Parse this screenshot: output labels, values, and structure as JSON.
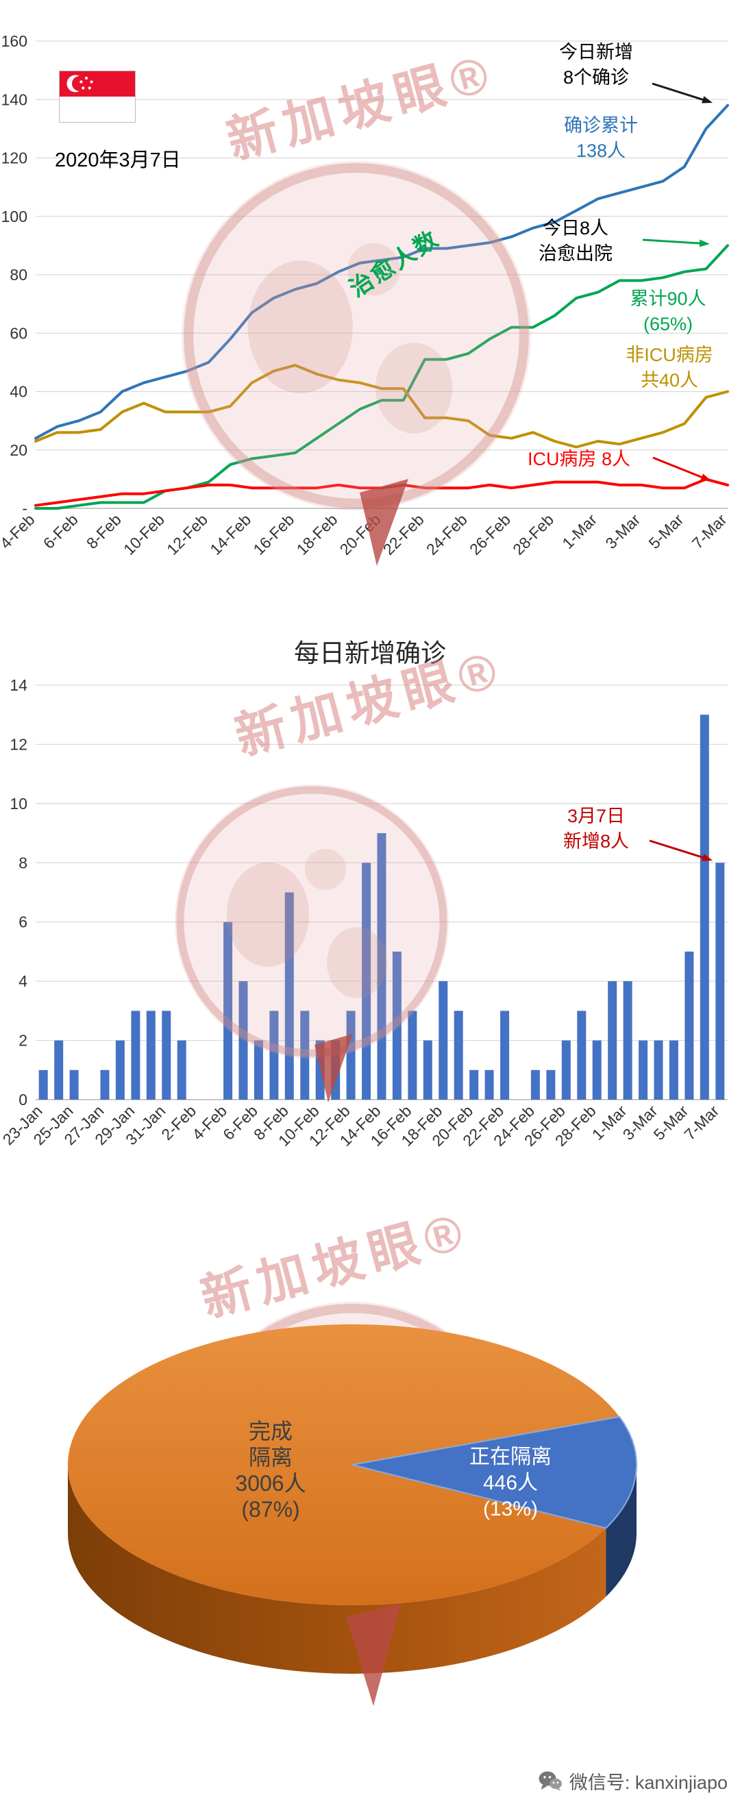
{
  "page": {
    "date": "2020年3月7日",
    "watermark": "新加坡眼®",
    "footer": {
      "wechat_label": "微信号: kanxinjiapo"
    }
  },
  "colors": {
    "confirmed": "#2e75b6",
    "cured": "#00a651",
    "non_icu": "#bf9000",
    "icu": "#ff0000",
    "bar": "#4472c4",
    "annotation_red": "#c00000",
    "pie_orange": "#e07c28",
    "pie_orange_dark": "#9c5310",
    "pie_blue": "#4472c4",
    "pie_blue_dark": "#1f3864",
    "grid": "#d9d9d9",
    "axis_text": "#333333"
  },
  "chart_data": [
    {
      "type": "line",
      "title": "",
      "ylim": [
        0,
        160
      ],
      "y_tick_labels": [
        "-",
        "20",
        "40",
        "60",
        "80",
        "100",
        "120",
        "140",
        "160"
      ],
      "x": [
        "4-Feb",
        "5-Feb",
        "6-Feb",
        "7-Feb",
        "8-Feb",
        "9-Feb",
        "10-Feb",
        "11-Feb",
        "12-Feb",
        "13-Feb",
        "14-Feb",
        "15-Feb",
        "16-Feb",
        "17-Feb",
        "18-Feb",
        "19-Feb",
        "20-Feb",
        "21-Feb",
        "22-Feb",
        "23-Feb",
        "24-Feb",
        "25-Feb",
        "26-Feb",
        "27-Feb",
        "28-Feb",
        "29-Feb",
        "1-Mar",
        "2-Mar",
        "3-Mar",
        "4-Mar",
        "5-Mar",
        "6-Mar",
        "7-Mar"
      ],
      "x_tick_labels": [
        "4-Feb",
        "6-Feb",
        "8-Feb",
        "10-Feb",
        "12-Feb",
        "14-Feb",
        "16-Feb",
        "18-Feb",
        "20-Feb",
        "22-Feb",
        "24-Feb",
        "26-Feb",
        "28-Feb",
        "1-Mar",
        "3-Mar",
        "5-Mar",
        "7-Mar"
      ],
      "series": [
        {
          "name": "确诊累计",
          "color_key": "confirmed",
          "values": [
            24,
            28,
            30,
            33,
            40,
            43,
            45,
            47,
            50,
            58,
            67,
            72,
            75,
            77,
            81,
            84,
            85,
            86,
            89,
            89,
            90,
            91,
            93,
            96,
            98,
            102,
            106,
            108,
            110,
            112,
            117,
            130,
            138
          ]
        },
        {
          "name": "治愈人数",
          "color_key": "cured",
          "values": [
            0,
            0,
            1,
            2,
            2,
            2,
            6,
            7,
            9,
            15,
            17,
            18,
            19,
            24,
            29,
            34,
            37,
            37,
            51,
            51,
            53,
            58,
            62,
            62,
            66,
            72,
            74,
            78,
            78,
            79,
            81,
            82,
            90
          ]
        },
        {
          "name": "非ICU病房",
          "color_key": "non_icu",
          "values": [
            23,
            26,
            26,
            27,
            33,
            36,
            33,
            33,
            33,
            35,
            43,
            47,
            49,
            46,
            44,
            43,
            41,
            41,
            31,
            31,
            30,
            25,
            24,
            26,
            23,
            21,
            23,
            22,
            24,
            26,
            29,
            38,
            40
          ]
        },
        {
          "name": "ICU病房",
          "color_key": "icu",
          "values": [
            1,
            2,
            3,
            4,
            5,
            5,
            6,
            7,
            8,
            8,
            7,
            7,
            7,
            7,
            8,
            7,
            7,
            8,
            7,
            7,
            7,
            8,
            7,
            8,
            9,
            9,
            9,
            8,
            8,
            7,
            7,
            10,
            8
          ]
        }
      ],
      "annotations": {
        "new_today": "今日新增\n8个确诊",
        "cum_confirmed": "确诊累计\n138人",
        "discharged_today": "今日8人\n治愈出院",
        "cum_cured": "累计90人\n(65%)",
        "non_icu": "非ICU病房\n共40人",
        "icu": "ICU病房 8人",
        "cured_line_label": "治愈人数"
      }
    },
    {
      "type": "bar",
      "title": "每日新增确诊",
      "ylim": [
        0,
        14
      ],
      "y_tick_labels": [
        "0",
        "2",
        "4",
        "6",
        "8",
        "10",
        "12",
        "14"
      ],
      "x": [
        "23-Jan",
        "24-Jan",
        "25-Jan",
        "26-Jan",
        "27-Jan",
        "28-Jan",
        "29-Jan",
        "30-Jan",
        "31-Jan",
        "1-Feb",
        "2-Feb",
        "3-Feb",
        "4-Feb",
        "5-Feb",
        "6-Feb",
        "7-Feb",
        "8-Feb",
        "9-Feb",
        "10-Feb",
        "11-Feb",
        "12-Feb",
        "13-Feb",
        "14-Feb",
        "15-Feb",
        "16-Feb",
        "17-Feb",
        "18-Feb",
        "19-Feb",
        "20-Feb",
        "21-Feb",
        "22-Feb",
        "23-Feb",
        "24-Feb",
        "25-Feb",
        "26-Feb",
        "27-Feb",
        "28-Feb",
        "29-Feb",
        "1-Mar",
        "2-Mar",
        "3-Mar",
        "4-Mar",
        "5-Mar",
        "6-Mar",
        "7-Mar"
      ],
      "x_tick_labels": [
        "23-Jan",
        "25-Jan",
        "27-Jan",
        "29-Jan",
        "31-Jan",
        "2-Feb",
        "4-Feb",
        "6-Feb",
        "8-Feb",
        "10-Feb",
        "12-Feb",
        "14-Feb",
        "16-Feb",
        "18-Feb",
        "20-Feb",
        "22-Feb",
        "24-Feb",
        "26-Feb",
        "28-Feb",
        "1-Mar",
        "3-Mar",
        "5-Mar",
        "7-Mar"
      ],
      "values": [
        1,
        2,
        1,
        0,
        1,
        2,
        3,
        3,
        3,
        2,
        0,
        0,
        6,
        4,
        2,
        3,
        7,
        3,
        2,
        2,
        3,
        8,
        9,
        5,
        3,
        2,
        4,
        3,
        1,
        1,
        3,
        0,
        1,
        1,
        2,
        3,
        2,
        4,
        4,
        2,
        2,
        2,
        5,
        13,
        8
      ],
      "annotation": "3月7日\n新增8人"
    },
    {
      "type": "pie",
      "slices": [
        {
          "name": "完成隔离",
          "value": 3006,
          "pct": 87,
          "label": "完成\n隔离\n3006人\n(87%)"
        },
        {
          "name": "正在隔离",
          "value": 446,
          "pct": 13,
          "label": "正在隔离\n446人\n(13%)"
        }
      ]
    }
  ]
}
